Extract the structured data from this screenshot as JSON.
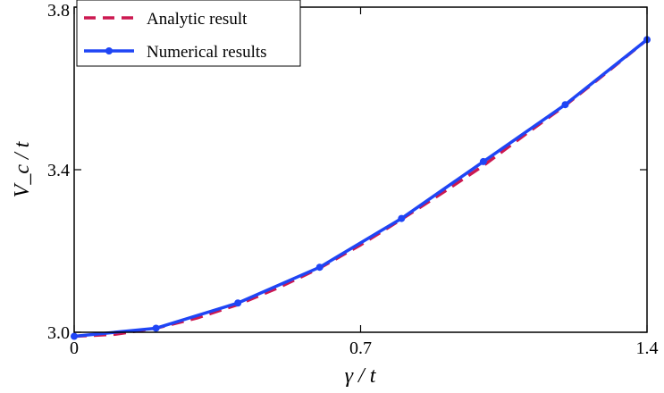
{
  "chart_data": {
    "type": "line",
    "title": "",
    "xlabel": "γ / t",
    "ylabel": "V_c / t",
    "xlim": [
      0,
      1.4
    ],
    "ylim": [
      3.0,
      3.8
    ],
    "xticks": [
      0,
      0.7,
      1.4
    ],
    "xtick_labels": [
      "0",
      "0.7",
      "1.4"
    ],
    "yticks": [
      3.0,
      3.4,
      3.8
    ],
    "ytick_labels": [
      "3.0",
      "3.4",
      "3.8"
    ],
    "grid": false,
    "legend_position": "top-left",
    "series": [
      {
        "name": "Analytic result",
        "style": "dashed",
        "color": "#cc1850",
        "x": [
          0,
          0.1,
          0.2,
          0.3,
          0.4,
          0.5,
          0.6,
          0.7,
          0.8,
          0.9,
          1.0,
          1.1,
          1.2,
          1.3,
          1.4
        ],
        "y": [
          2.99,
          2.995,
          3.01,
          3.035,
          3.068,
          3.11,
          3.158,
          3.215,
          3.278,
          3.343,
          3.41,
          3.485,
          3.558,
          3.638,
          3.72
        ]
      },
      {
        "name": "Numerical results",
        "style": "solid-markers",
        "color": "#1f45f5",
        "x": [
          0,
          0.2,
          0.4,
          0.6,
          0.8,
          1.0,
          1.2,
          1.4
        ],
        "y": [
          2.99,
          3.01,
          3.072,
          3.16,
          3.28,
          3.42,
          3.56,
          3.72
        ]
      }
    ]
  }
}
